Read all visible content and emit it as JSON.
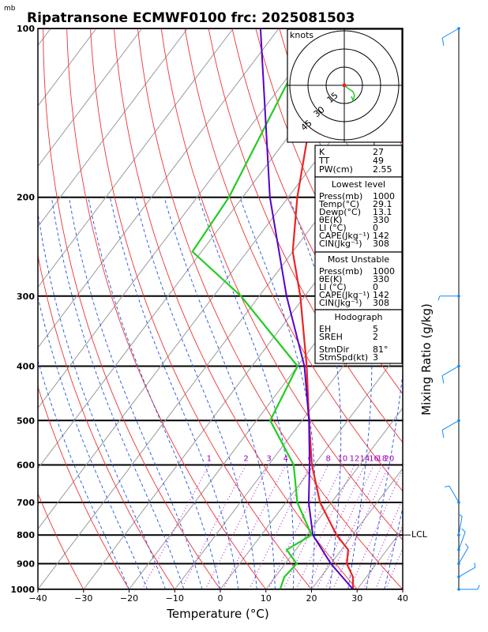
{
  "title": "Ripatransone ECMWF0100  frc: 2025081503",
  "pressure_unit": "mb",
  "hodograph": {
    "units_label": "knots",
    "ring_labels": [
      "15",
      "30",
      "45"
    ]
  },
  "indices_panel": {
    "top": [
      {
        "label": "K",
        "value": "27"
      },
      {
        "label": "TT",
        "value": "49"
      },
      {
        "label": "PW(cm)",
        "value": "2.55"
      }
    ],
    "lowest_level": {
      "heading": "Lowest level",
      "rows": [
        {
          "label": "Press(mb)",
          "value": "1000"
        },
        {
          "label": "Temp(°C)",
          "value": "29.1"
        },
        {
          "label": "Dewp(°C)",
          "value": "13.1"
        },
        {
          "label": "θE(K)",
          "value": "330"
        },
        {
          "label": "LI (°C)",
          "value": "0"
        },
        {
          "label": "CAPE(Jkg⁻¹)",
          "value": "142"
        },
        {
          "label": "CIN(Jkg⁻¹)",
          "value": "308"
        }
      ]
    },
    "most_unstable": {
      "heading": "Most Unstable",
      "rows": [
        {
          "label": "Press(mb)",
          "value": "1000"
        },
        {
          "label": "θE(K)",
          "value": "330"
        },
        {
          "label": "LI (°C)",
          "value": "0"
        },
        {
          "label": "CAPE(Jkg⁻¹)",
          "value": "142"
        },
        {
          "label": "CIN(Jkg⁻¹)",
          "value": "308"
        }
      ]
    },
    "hodograph_info": {
      "heading": "Hodograph",
      "rows": [
        {
          "label": "EH",
          "value": "5"
        },
        {
          "label": "SREH",
          "value": "2"
        },
        {
          "label": "StmDir",
          "value": "81°"
        },
        {
          "label": "StmSpd(kt)",
          "value": "3"
        }
      ]
    }
  },
  "lcl_label": "LCL",
  "colors": {
    "temperature": "#ee2222",
    "dewpoint": "#22cc22",
    "parcel": "#5500cc",
    "isotherm": "#999999",
    "dry_adiabat": "#ee3333",
    "moist_adiabat": "#2255dd",
    "mixing_ratio": "#aa00cc",
    "wind": "#1188ff"
  },
  "chart_data": {
    "type": "line",
    "xlabel": "Temperature (°C)",
    "ylabel_right": "Mixing Ratio (g/kg)",
    "x_ticks": [
      -40,
      -30,
      -20,
      -10,
      0,
      10,
      20,
      30,
      40
    ],
    "xlim": [
      -40,
      40
    ],
    "pressure_range": [
      1000,
      100
    ],
    "pressure_tick_labels": [
      100,
      200,
      300,
      400,
      500,
      600,
      700,
      800,
      900,
      1000
    ],
    "mixing_ratio_labels": [
      "1",
      "2",
      "3",
      "4",
      "6",
      "8",
      "10",
      "12",
      "14",
      "16",
      "18",
      "20",
      "25",
      "30",
      "35",
      "40"
    ],
    "series": [
      {
        "name": "",
        "role": "temperature",
        "points": [
          [
            1000,
            29.1
          ],
          [
            950,
            27.0
          ],
          [
            900,
            23.5
          ],
          [
            850,
            21.5
          ],
          [
            800,
            16.5
          ],
          [
            700,
            7.5
          ],
          [
            600,
            -0.5
          ],
          [
            500,
            -8.5
          ],
          [
            400,
            -18.0
          ],
          [
            300,
            -31.0
          ],
          [
            250,
            -40.0
          ],
          [
            200,
            -48.0
          ],
          [
            150,
            -57.0
          ],
          [
            100,
            -65.0
          ]
        ]
      },
      {
        "name": "",
        "role": "dewpoint",
        "points": [
          [
            1000,
            13.1
          ],
          [
            950,
            12.0
          ],
          [
            900,
            12.5
          ],
          [
            850,
            8.0
          ],
          [
            800,
            11.0
          ],
          [
            700,
            2.5
          ],
          [
            600,
            -4.5
          ],
          [
            500,
            -17.0
          ],
          [
            400,
            -20.0
          ],
          [
            300,
            -44.0
          ],
          [
            250,
            -62.0
          ],
          [
            200,
            -63.0
          ],
          [
            100,
            -72.0
          ]
        ]
      },
      {
        "name": "",
        "role": "parcel",
        "points": [
          [
            1000,
            29.1
          ],
          [
            900,
            20.0
          ],
          [
            800,
            11.3
          ],
          [
            700,
            5.0
          ],
          [
            600,
            -1.0
          ],
          [
            500,
            -8.5
          ],
          [
            400,
            -18.5
          ],
          [
            300,
            -34.0
          ],
          [
            200,
            -54.0
          ],
          [
            100,
            -84.0
          ]
        ]
      }
    ],
    "wind_profile": [
      {
        "pressure": 1000,
        "direction_deg": 90,
        "speed_kt": 5
      },
      {
        "pressure": 950,
        "direction_deg": 60,
        "speed_kt": 5
      },
      {
        "pressure": 900,
        "direction_deg": 30,
        "speed_kt": 5
      },
      {
        "pressure": 850,
        "direction_deg": 20,
        "speed_kt": 5
      },
      {
        "pressure": 800,
        "direction_deg": 10,
        "speed_kt": 5
      },
      {
        "pressure": 700,
        "direction_deg": 330,
        "speed_kt": 5
      },
      {
        "pressure": 500,
        "direction_deg": 240,
        "speed_kt": 10
      },
      {
        "pressure": 400,
        "direction_deg": 240,
        "speed_kt": 10
      },
      {
        "pressure": 300,
        "direction_deg": 270,
        "speed_kt": 5
      },
      {
        "pressure": 100,
        "direction_deg": 240,
        "speed_kt": 10
      }
    ],
    "lcl_pressure": 800,
    "grid": true
  }
}
